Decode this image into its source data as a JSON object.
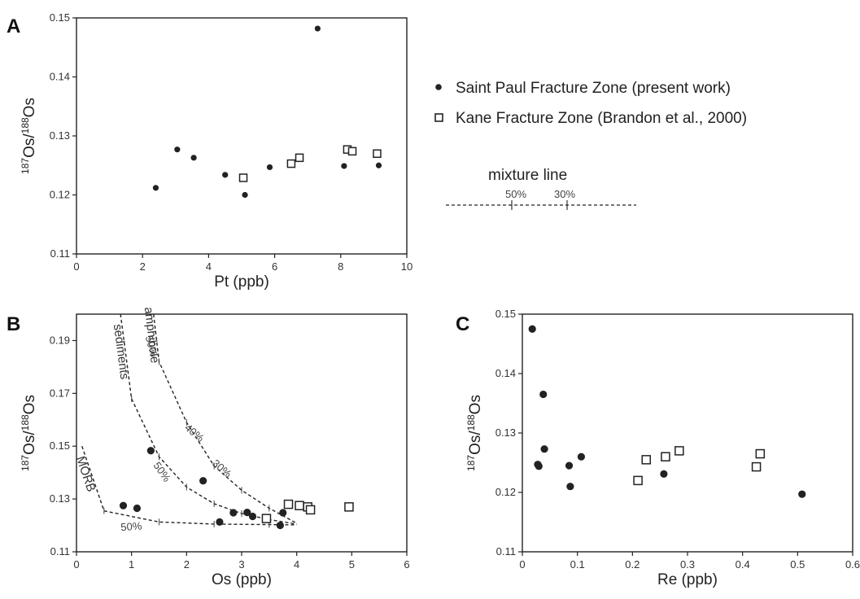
{
  "legend": {
    "saint_paul": "Saint Paul Fracture Zone (present work)",
    "kane": "Kane Fracture Zone (Brandon et al., 2000)",
    "mixture_line": "mixture line",
    "mix_pct_1": "50%",
    "mix_pct_2": "30%"
  },
  "chart_data": [
    {
      "panel": "A",
      "type": "scatter",
      "xlabel": "Pt (ppb)",
      "ylabel": "187Os/188Os",
      "xlim": [
        0,
        10
      ],
      "ylim": [
        0.11,
        0.15
      ],
      "xticks": [
        "0",
        "2",
        "4",
        "6",
        "8",
        "10"
      ],
      "yticks": [
        "0.11",
        "0.12",
        "0.13",
        "0.14",
        "0.15"
      ],
      "series": [
        {
          "name": "Saint Paul Fracture Zone (present work)",
          "marker": "filled-circle",
          "x": [
            2.4,
            3.05,
            3.55,
            4.5,
            5.1,
            5.85,
            7.3,
            8.1,
            9.15
          ],
          "y": [
            0.1212,
            0.1277,
            0.1263,
            0.1234,
            0.12,
            0.1247,
            0.1482,
            0.1249,
            0.125
          ]
        },
        {
          "name": "Kane Fracture Zone (Brandon et al., 2000)",
          "marker": "open-square",
          "x": [
            5.05,
            6.5,
            6.75,
            8.2,
            8.35,
            9.1
          ],
          "y": [
            0.1229,
            0.1253,
            0.1263,
            0.1277,
            0.1274,
            0.127
          ]
        }
      ]
    },
    {
      "panel": "B",
      "type": "scatter",
      "xlabel": "Os (ppb)",
      "ylabel": "187Os/188Os",
      "xlim": [
        0,
        6
      ],
      "ylim": [
        0.11,
        0.2
      ],
      "xticks": [
        "0",
        "1",
        "2",
        "3",
        "4",
        "5",
        "6"
      ],
      "yticks": [
        "0.11",
        "0.13",
        "0.15",
        "0.17",
        "0.19"
      ],
      "series": [
        {
          "name": "Saint Paul Fracture Zone (present work)",
          "marker": "filled-circle",
          "x": [
            0.85,
            1.1,
            1.35,
            2.3,
            2.6,
            2.85,
            3.1,
            3.2,
            3.7,
            3.75
          ],
          "y": [
            0.1275,
            0.1265,
            0.1483,
            0.1369,
            0.1213,
            0.1248,
            0.1249,
            0.1234,
            0.12,
            0.1248
          ]
        },
        {
          "name": "Kane Fracture Zone (Brandon et al., 2000)",
          "marker": "open-square",
          "x": [
            3.45,
            3.85,
            4.05,
            4.2,
            4.25,
            4.95
          ],
          "y": [
            0.1226,
            0.128,
            0.1275,
            0.127,
            0.1259,
            0.127
          ]
        }
      ],
      "mixing_curves": [
        {
          "label": "MORB",
          "pct_label": "50%",
          "x": [
            0.1,
            0.5,
            1.5,
            2.5,
            3.5,
            4.0
          ],
          "y": [
            0.15,
            0.1255,
            0.1213,
            0.1205,
            0.1203,
            0.1202
          ]
        },
        {
          "label": "sediments",
          "pct_label": "50%",
          "x": [
            0.8,
            1.0,
            1.5,
            2.0,
            2.5,
            3.0,
            3.5,
            4.0
          ],
          "y": [
            0.2,
            0.168,
            0.146,
            0.1345,
            0.1282,
            0.1245,
            0.1222,
            0.1205
          ]
        },
        {
          "label": "amphibole",
          "pct_labels": [
            "50%",
            "40%",
            "30%"
          ],
          "x": [
            1.4,
            1.5,
            2.0,
            2.5,
            3.0,
            3.5,
            4.0
          ],
          "y": [
            0.2,
            0.182,
            0.159,
            0.1425,
            0.1333,
            0.1265,
            0.1208
          ]
        }
      ]
    },
    {
      "panel": "C",
      "type": "scatter",
      "xlabel": "Re (ppb)",
      "ylabel": "187Os/188Os",
      "xlim": [
        0,
        0.6
      ],
      "ylim": [
        0.11,
        0.15
      ],
      "xticks": [
        "0",
        "0.1",
        "0.2",
        "0.3",
        "0.4",
        "0.5",
        "0.6"
      ],
      "yticks": [
        "0.11",
        "0.12",
        "0.13",
        "0.14",
        "0.15"
      ],
      "series": [
        {
          "name": "Saint Paul Fracture Zone (present work)",
          "marker": "filled-circle",
          "x": [
            0.018,
            0.028,
            0.03,
            0.038,
            0.04,
            0.085,
            0.087,
            0.107,
            0.257,
            0.508
          ],
          "y": [
            0.1475,
            0.1247,
            0.1244,
            0.1365,
            0.1273,
            0.1245,
            0.121,
            0.126,
            0.1231,
            0.1197
          ]
        },
        {
          "name": "Kane Fracture Zone (Brandon et al., 2000)",
          "marker": "open-square",
          "x": [
            0.21,
            0.225,
            0.26,
            0.285,
            0.425,
            0.432
          ],
          "y": [
            0.122,
            0.1255,
            0.126,
            0.127,
            0.1243,
            0.1265
          ]
        }
      ]
    }
  ]
}
